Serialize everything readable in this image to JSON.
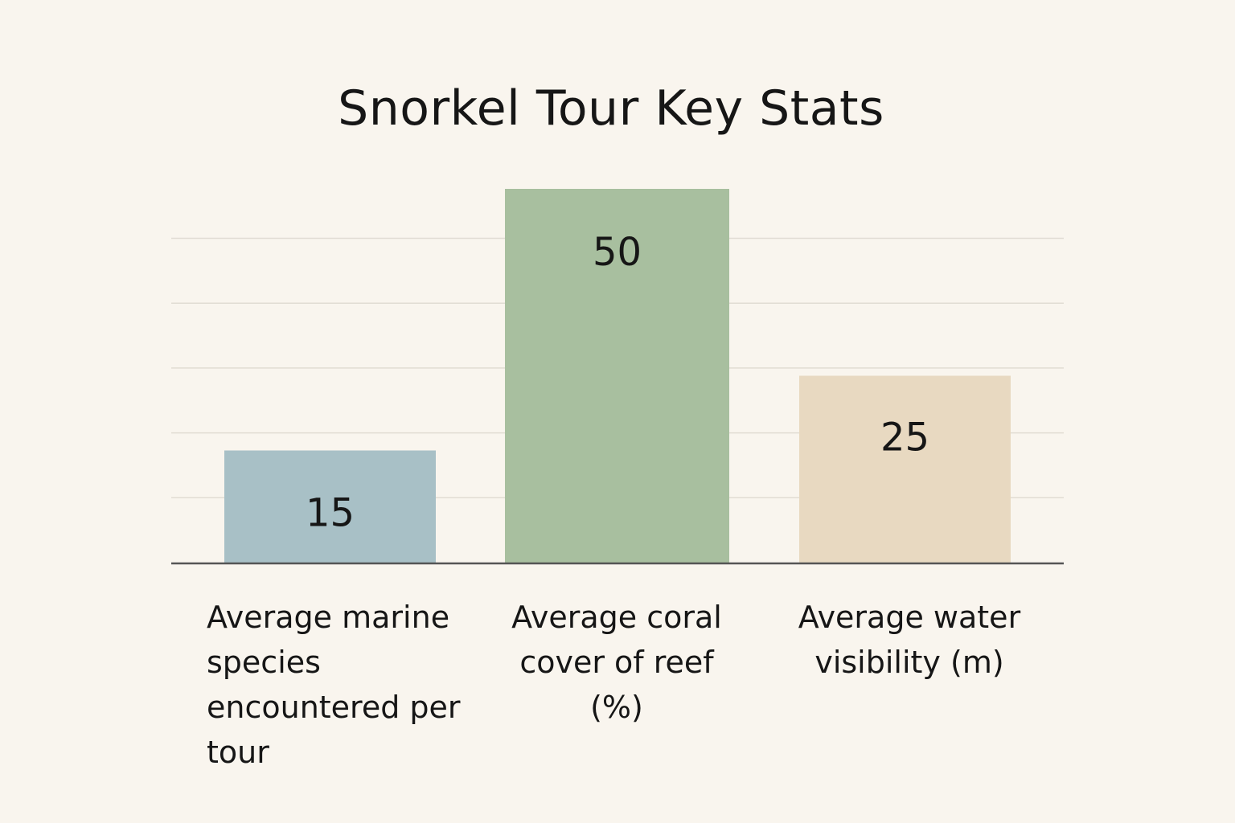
{
  "chart_data": {
    "type": "bar",
    "title": "Snorkel Tour Key Stats",
    "categories": [
      "Average marine species encountered per tour",
      "Average coral cover of reef (%)",
      "Average water visibility (m)"
    ],
    "values": [
      15,
      50,
      25
    ],
    "data_labels": [
      "15",
      "50",
      "25"
    ],
    "ylim": [
      0,
      50
    ],
    "grid": true,
    "colors": [
      "#a8c0c6",
      "#a8bf9f",
      "#e8d9c1"
    ]
  }
}
